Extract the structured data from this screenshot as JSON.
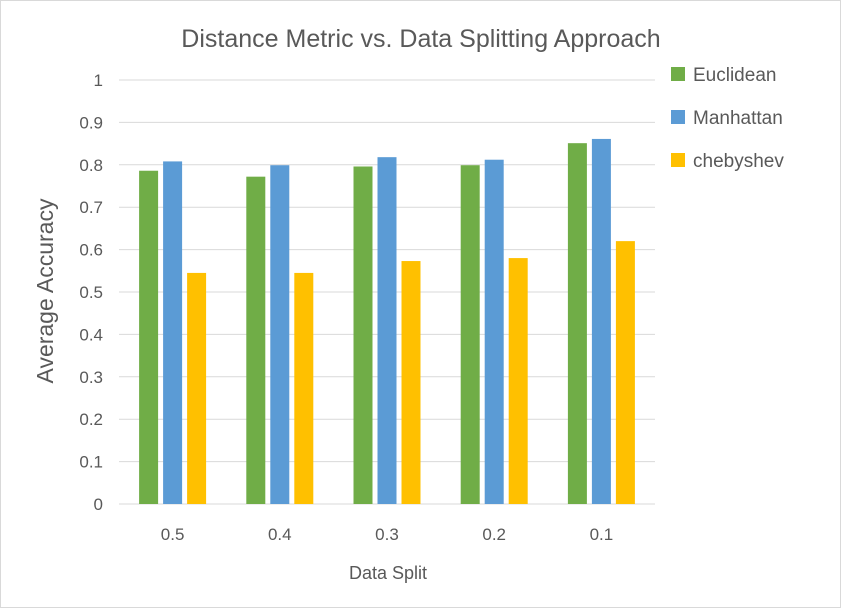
{
  "chart_data": {
    "type": "bar",
    "title": "Distance Metric vs. Data Splitting Approach",
    "xlabel": "Data Split",
    "ylabel": "Average Accuracy",
    "categories": [
      "0.5",
      "0.4",
      "0.3",
      "0.2",
      "0.1"
    ],
    "ylim": [
      0,
      1
    ],
    "yticks": [
      "0",
      "0.1",
      "0.2",
      "0.3",
      "0.4",
      "0.5",
      "0.6",
      "0.7",
      "0.8",
      "0.9",
      "1"
    ],
    "grid": true,
    "legend_position": "right",
    "series": [
      {
        "name": "Euclidean",
        "color": "#70ad47",
        "values": [
          0.786,
          0.772,
          0.796,
          0.799,
          0.851
        ]
      },
      {
        "name": "Manhattan",
        "color": "#5b9bd5",
        "values": [
          0.808,
          0.799,
          0.818,
          0.812,
          0.861
        ]
      },
      {
        "name": "chebyshev",
        "color": "#ffc000",
        "values": [
          0.545,
          0.545,
          0.573,
          0.58,
          0.62
        ]
      }
    ]
  }
}
